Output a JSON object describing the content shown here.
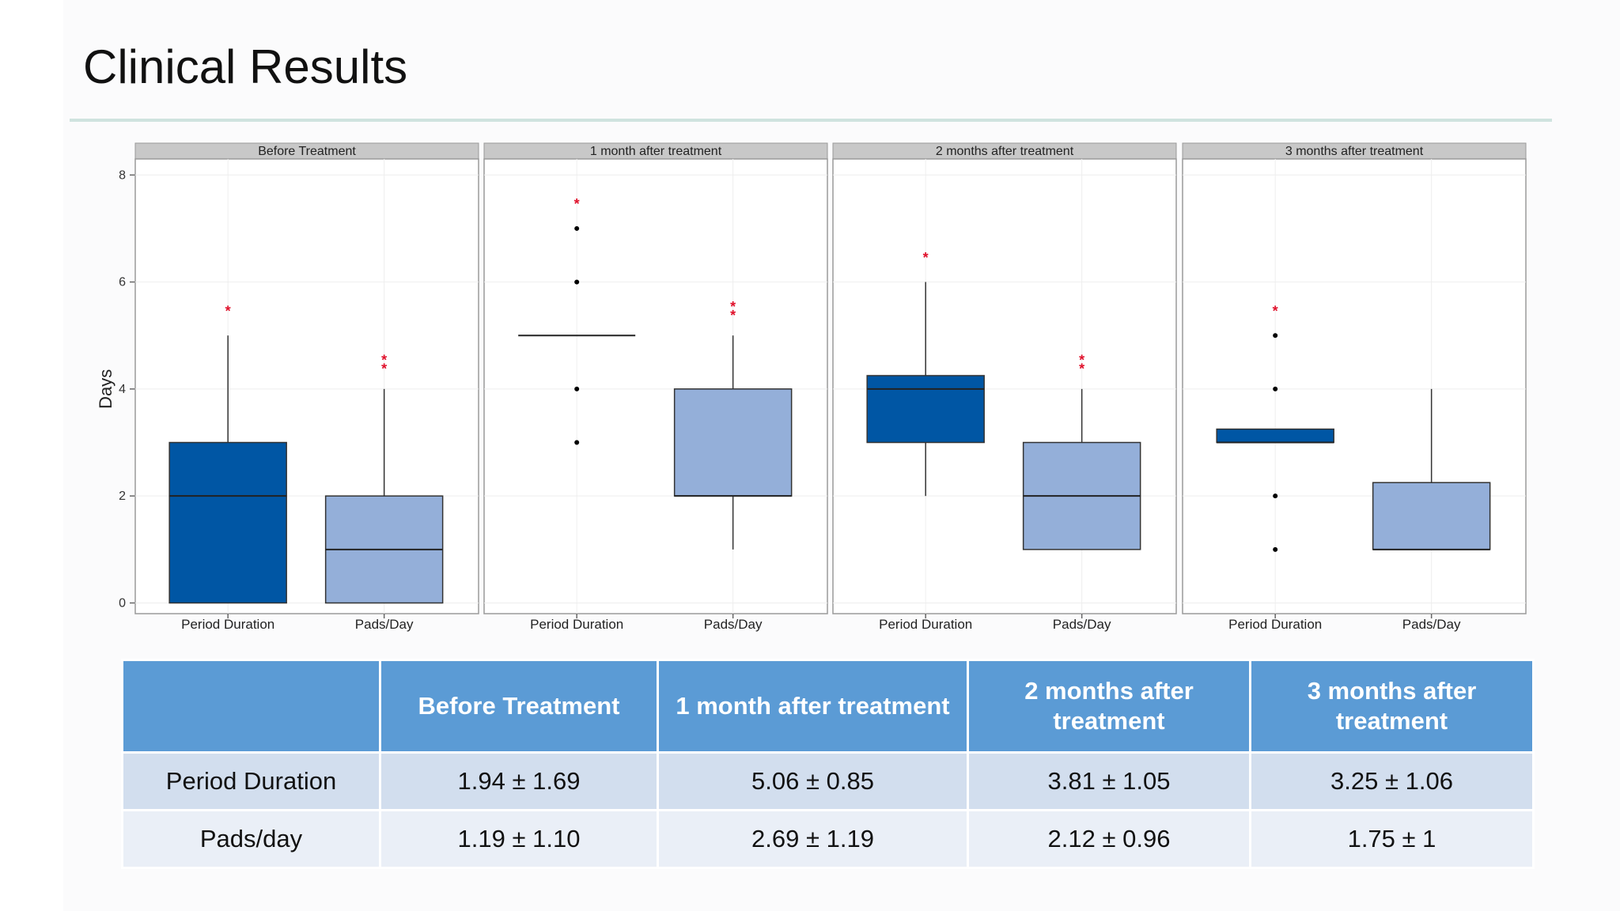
{
  "slide": {
    "title": "Clinical Results"
  },
  "chart_data": {
    "type": "boxplot",
    "ylabel": "Days",
    "ylim": [
      -0.2,
      8.3
    ],
    "y_ticks": [
      0,
      2,
      4,
      6,
      8
    ],
    "grid": true,
    "categories": [
      "Period Duration",
      "Pads/Day"
    ],
    "colors": {
      "Period Duration": "#0056a4",
      "Pads/Day": "#94afd9",
      "outlier": "#000000",
      "mean_marker": "#e0112b"
    },
    "panels": [
      {
        "title": "Before Treatment",
        "boxes": [
          {
            "category": "Period Duration",
            "whisker_low": 0,
            "q1": 0,
            "median": 2,
            "q3": 3,
            "whisker_high": 5,
            "outliers": [],
            "marker_y": 5.5,
            "marker_text": "*"
          },
          {
            "category": "Pads/Day",
            "whisker_low": 0,
            "q1": 0,
            "median": 1,
            "q3": 2,
            "whisker_high": 4,
            "outliers": [],
            "marker_y": 4.5,
            "marker_text": "**"
          }
        ]
      },
      {
        "title": "1 month after treatment",
        "boxes": [
          {
            "category": "Period Duration",
            "whisker_low": 5,
            "q1": 5,
            "median": 5,
            "q3": 5,
            "whisker_high": 5,
            "outliers": [
              3,
              4,
              6,
              7
            ],
            "marker_y": 7.5,
            "marker_text": "*"
          },
          {
            "category": "Pads/Day",
            "whisker_low": 1,
            "q1": 2,
            "median": 2,
            "q3": 4,
            "whisker_high": 5,
            "outliers": [],
            "marker_y": 5.5,
            "marker_text": "**"
          }
        ]
      },
      {
        "title": "2 months after treatment",
        "boxes": [
          {
            "category": "Period Duration",
            "whisker_low": 2,
            "q1": 3,
            "median": 4,
            "q3": 4.25,
            "whisker_high": 6,
            "outliers": [],
            "marker_y": 6.5,
            "marker_text": "*"
          },
          {
            "category": "Pads/Day",
            "whisker_low": 1,
            "q1": 1,
            "median": 2,
            "q3": 3,
            "whisker_high": 4,
            "outliers": [],
            "marker_y": 4.5,
            "marker_text": "**"
          }
        ]
      },
      {
        "title": "3 months after treatment",
        "boxes": [
          {
            "category": "Period Duration",
            "whisker_low": 3,
            "q1": 3,
            "median": 3,
            "q3": 3.25,
            "whisker_high": 3.25,
            "outliers": [
              1,
              2,
              4,
              5
            ],
            "marker_y": 5.5,
            "marker_text": "*"
          },
          {
            "category": "Pads/Day",
            "whisker_low": 1,
            "q1": 1,
            "median": 1,
            "q3": 2.25,
            "whisker_high": 4,
            "outliers": [],
            "marker_y": null,
            "marker_text": ""
          }
        ]
      }
    ]
  },
  "table": {
    "headers": [
      "",
      "Before Treatment",
      "1 month after treatment",
      "2 months after treatment",
      "3 months after treatment"
    ],
    "rows": [
      {
        "label": "Period Duration",
        "values": [
          "1.94 ± 1.69",
          "5.06 ± 0.85",
          "3.81 ± 1.05",
          "3.25 ± 1.06"
        ]
      },
      {
        "label": "Pads/day",
        "values": [
          "1.19 ± 1.10",
          "2.69 ± 1.19",
          "2.12 ± 0.96",
          "1.75 ± 1"
        ]
      }
    ]
  }
}
